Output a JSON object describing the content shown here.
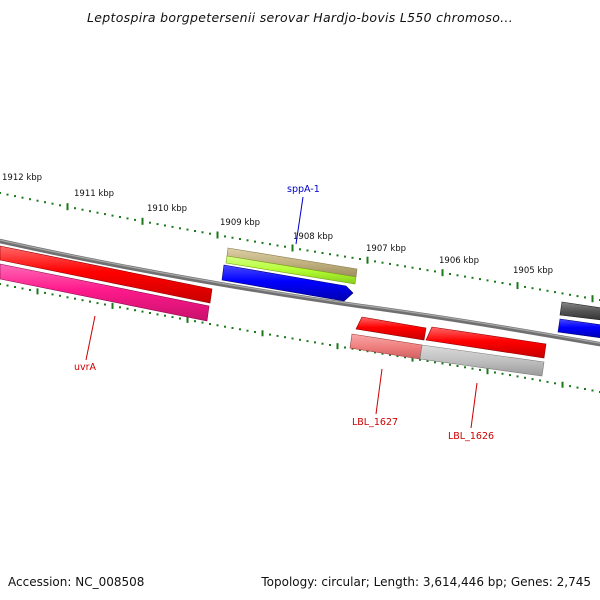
{
  "title": "Leptospira borgpetersenii serovar Hardjo-bovis L550 chromoso...",
  "footer": {
    "accession": "Accession: NC_008508",
    "summary": "Topology: circular; Length: 3,614,446 bp; Genes: 2,745"
  },
  "scale_labels": [
    "1912 kbp",
    "1911 kbp",
    "1910 kbp",
    "1909 kbp",
    "1908 kbp",
    "1907 kbp",
    "1906 kbp",
    "1905 kbp"
  ],
  "gene_labels": [
    {
      "text": "sppA-1",
      "color": "#0000cc"
    },
    {
      "text": "uvrA",
      "color": "#cc0000"
    },
    {
      "text": "LBL_1627",
      "color": "#cc0000"
    },
    {
      "text": "LBL_1626",
      "color": "#cc0000"
    }
  ],
  "colors": {
    "backbone": "#808080",
    "tick_green": "#1a7a1a",
    "cds_red": "#ff0000",
    "cds_blue": "#0000ff",
    "cds_pink": "#ff1a8c",
    "cds_salmon": "#f08080",
    "cds_lightgray": "#c0c0c0",
    "cds_darkgray": "#555555",
    "cds_olive": "#c2b280",
    "cds_lime": "#b3ff33"
  }
}
